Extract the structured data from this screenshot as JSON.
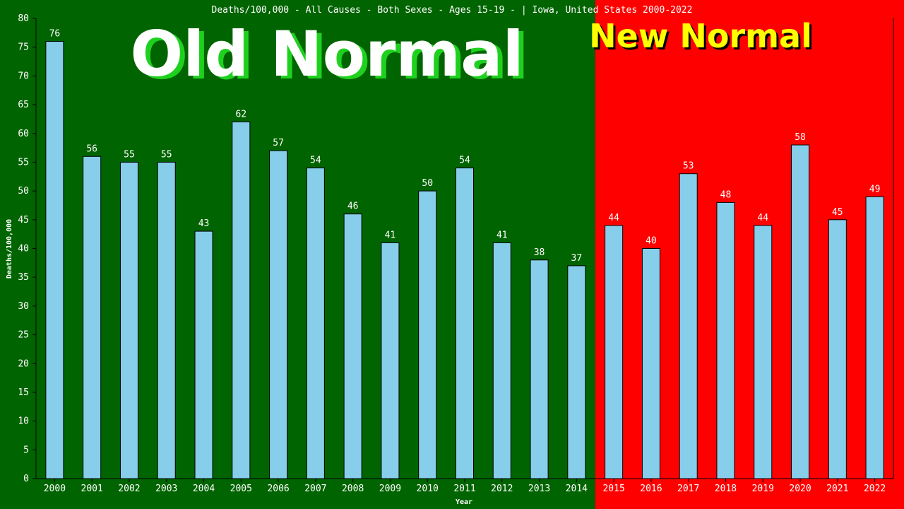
{
  "chart_data": {
    "type": "bar",
    "title": "Deaths/100,000 - All Causes - Both Sexes - Ages 15-19 -  | Iowa, United States 2000-2022",
    "xlabel": "Year",
    "ylabel": "Deaths/100,000",
    "ylim": [
      0,
      80
    ],
    "yticks": [
      "0",
      "5",
      "10",
      "15",
      "20",
      "25",
      "30",
      "35",
      "40",
      "45",
      "50",
      "55",
      "60",
      "65",
      "70",
      "75",
      "80"
    ],
    "categories": [
      "2000",
      "2001",
      "2002",
      "2003",
      "2004",
      "2005",
      "2006",
      "2007",
      "2008",
      "2009",
      "2010",
      "2011",
      "2012",
      "2013",
      "2014",
      "2015",
      "2016",
      "2017",
      "2018",
      "2019",
      "2020",
      "2021",
      "2022"
    ],
    "series": [
      {
        "values": [
          76,
          56,
          55,
          55,
          43,
          62,
          57,
          54,
          46,
          41,
          50,
          54,
          41,
          38,
          37,
          44,
          40,
          53,
          48,
          44,
          58,
          45,
          49
        ]
      }
    ],
    "data_labels": [
      "76",
      "56",
      "55",
      "55",
      "43",
      "62",
      "57",
      "54",
      "46",
      "41",
      "50",
      "54",
      "41",
      "38",
      "37",
      "44",
      "40",
      "53",
      "48",
      "44",
      "58",
      "45",
      "49"
    ],
    "regions": [
      {
        "label": "Old Normal",
        "from": "2000",
        "to": "2014",
        "color": "#006400",
        "label_color": "#ffffff",
        "shadow_color": "#1fd11f"
      },
      {
        "label": "New Normal",
        "from": "2015",
        "to": "2022",
        "color": "#ff0000",
        "label_color": "#ffff00",
        "shadow_color": "#000000"
      }
    ],
    "bar_color": "#87ceeb",
    "grid": false,
    "legend": "none"
  }
}
